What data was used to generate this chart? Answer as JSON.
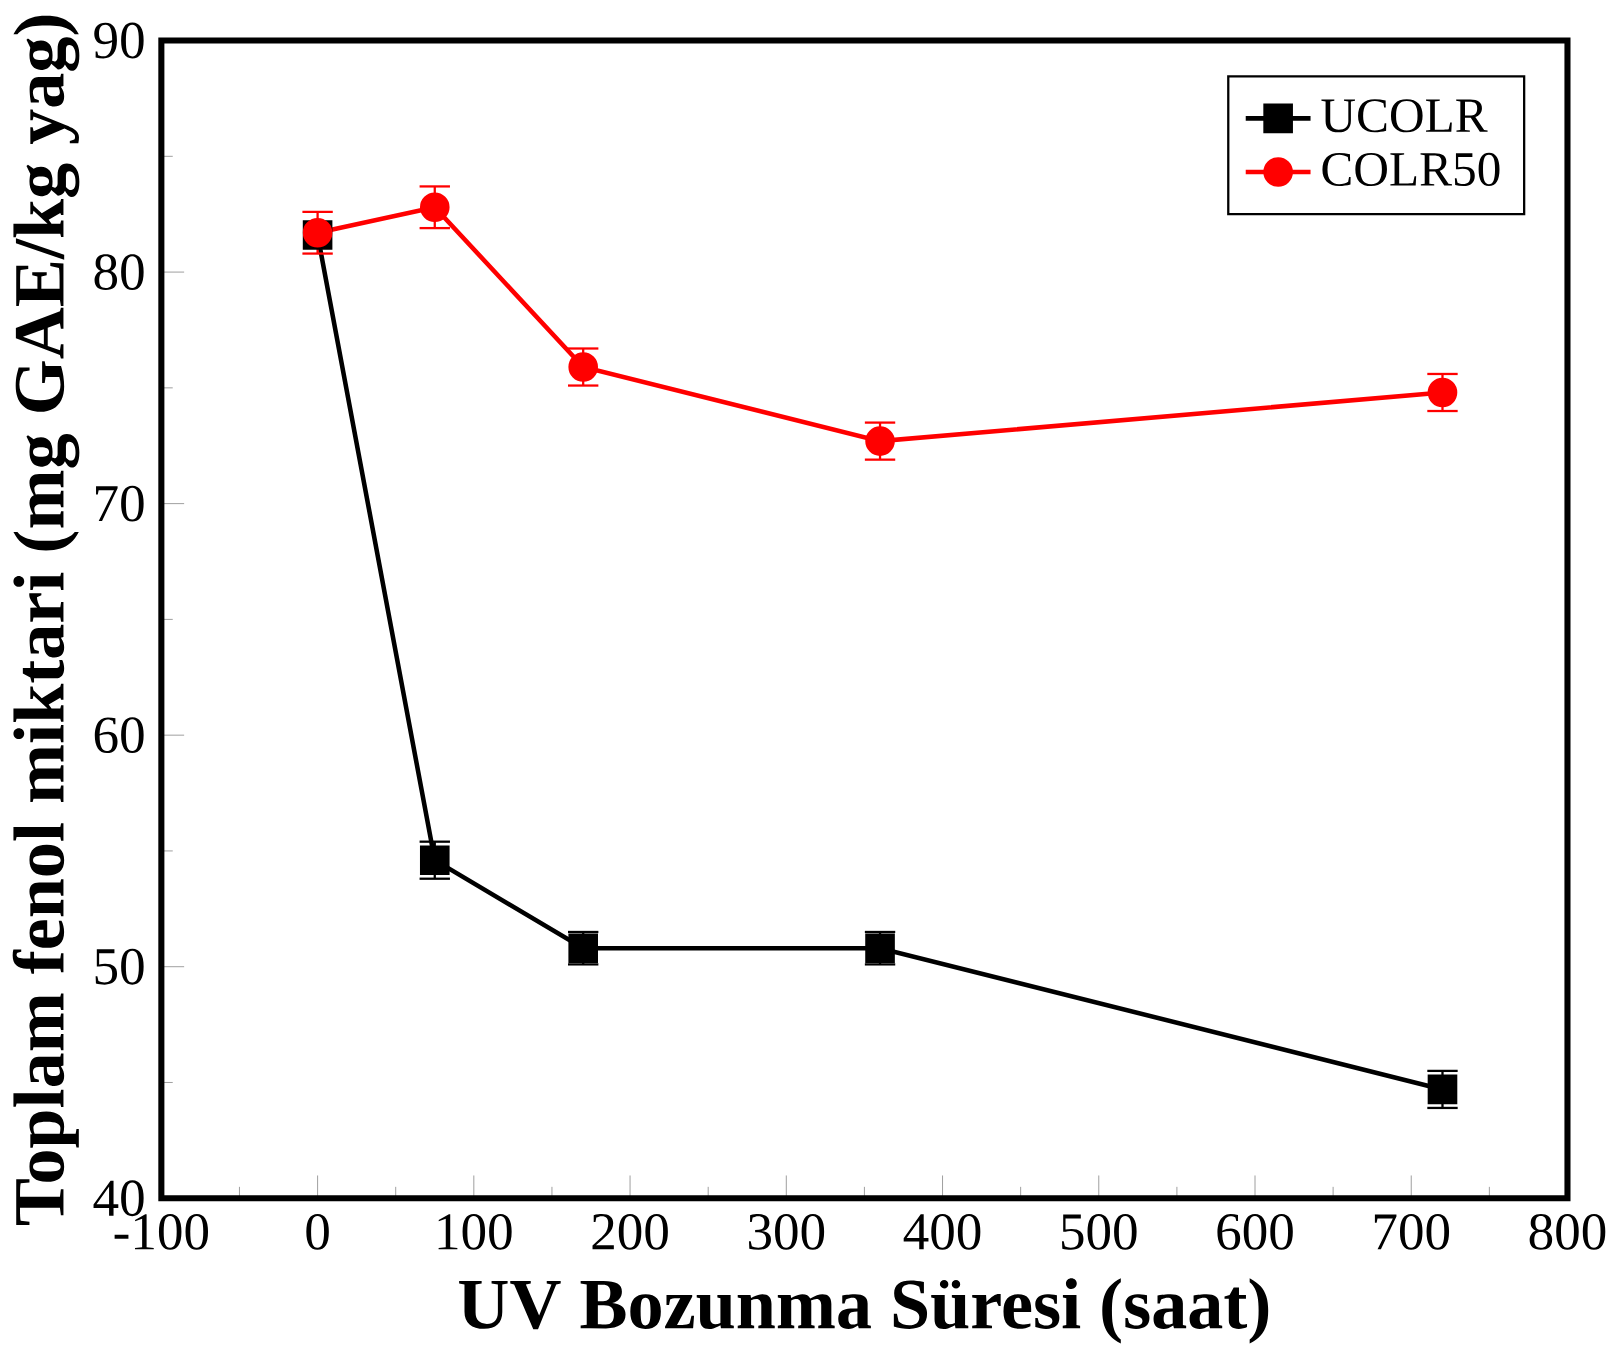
{
  "chart_data": {
    "type": "line",
    "xlabel": "UV Bozunma Süresi (saat)",
    "ylabel": "Toplam fenol miktari (mg GAE/kg yag)",
    "x": [
      0,
      75,
      170,
      360,
      720
    ],
    "series": [
      {
        "name": "UCOLR",
        "color": "#000000",
        "marker": "square",
        "values": [
          81.6,
          54.6,
          50.8,
          50.8,
          44.7
        ],
        "errors": [
          null,
          0.8,
          0.7,
          0.7,
          0.8
        ]
      },
      {
        "name": "COLR50",
        "color": "#ff0000",
        "marker": "circle",
        "values": [
          81.7,
          82.8,
          75.9,
          72.7,
          74.8
        ],
        "errors": [
          0.9,
          0.9,
          0.8,
          0.8,
          0.8
        ]
      }
    ],
    "xlim": [
      -100,
      800
    ],
    "xticks": [
      -100,
      0,
      100,
      200,
      300,
      400,
      500,
      600,
      700,
      800
    ],
    "ylim": [
      40,
      90
    ],
    "yticks": [
      40,
      50,
      60,
      70,
      80,
      90
    ],
    "grid": false,
    "legend": "top right",
    "line_style": "solid"
  }
}
